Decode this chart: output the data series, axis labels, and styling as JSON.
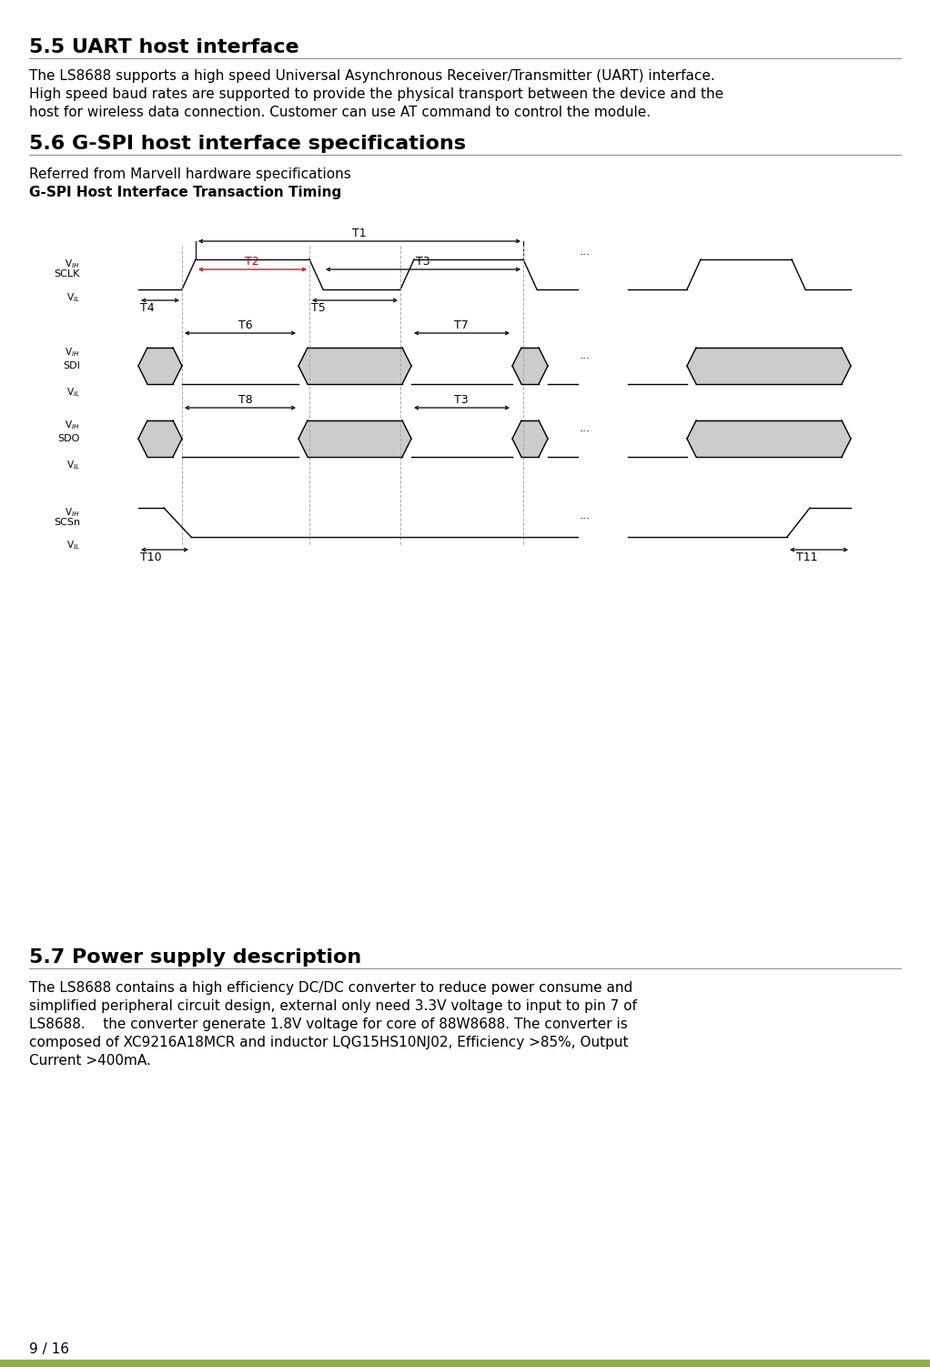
{
  "title_55": "5.5 UART host interface",
  "body_55_lines": [
    "The LS8688 supports a high speed Universal Asynchronous Receiver/Transmitter (UART) interface.",
    "High speed baud rates are supported to provide the physical transport between the device and the",
    "host for wireless data connection. Customer can use AT command to control the module."
  ],
  "title_56": "5.6 G-SPI host interface specifications",
  "body_56_1": "Referred from Marvell hardware specifications",
  "body_56_2": "G-SPI Host Interface Transaction Timing",
  "title_57": "5.7 Power supply description",
  "body_57_lines": [
    "The LS8688 contains a high efficiency DC/DC converter to reduce power consume and",
    "simplified peripheral circuit design, external only need 3.3V voltage to input to pin 7 of",
    "LS8688.    the converter generate 1.8V voltage for core of 88W8688. The converter is",
    "composed of XC9216A18MCR and inductor LQG15HS10NJ02, Efficiency >85%, Output",
    "Current >400mA."
  ],
  "footer": "9 / 16",
  "bg_color": "#ffffff",
  "text_color": "#000000",
  "footer_bar_color": "#8db040",
  "diagram_gray": "#cccccc",
  "diagram_line_color": "#000000",
  "t2_color": "#cc0000"
}
